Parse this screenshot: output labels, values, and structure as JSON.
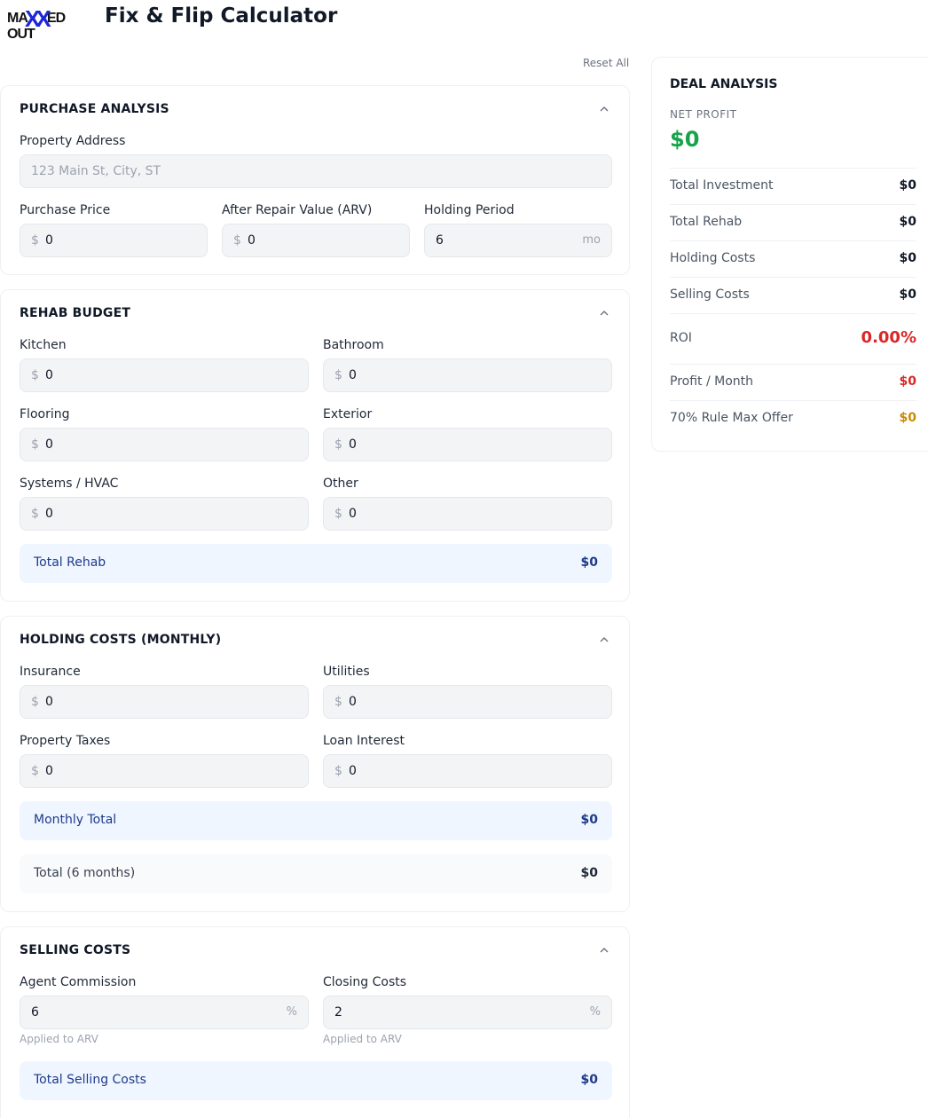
{
  "header": {
    "logo_text": "MAXXED OUT",
    "title": "Fix & Flip Calculator"
  },
  "reset_label": "Reset All",
  "purchase": {
    "heading": "PURCHASE ANALYSIS",
    "address_label": "Property Address",
    "address_placeholder": "123 Main St, City, ST",
    "price_label": "Purchase Price",
    "price_value": "0",
    "arv_label": "After Repair Value (ARV)",
    "arv_value": "0",
    "holding_label": "Holding Period",
    "holding_value": "6",
    "holding_unit": "mo"
  },
  "rehab": {
    "heading": "REHAB BUDGET",
    "fields": [
      {
        "label": "Kitchen",
        "value": "0"
      },
      {
        "label": "Bathroom",
        "value": "0"
      },
      {
        "label": "Flooring",
        "value": "0"
      },
      {
        "label": "Exterior",
        "value": "0"
      },
      {
        "label": "Systems / HVAC",
        "value": "0"
      },
      {
        "label": "Other",
        "value": "0"
      }
    ],
    "total_label": "Total Rehab",
    "total_value": "$0"
  },
  "holding": {
    "heading": "HOLDING COSTS (MONTHLY)",
    "fields": [
      {
        "label": "Insurance",
        "value": "0"
      },
      {
        "label": "Utilities",
        "value": "0"
      },
      {
        "label": "Property Taxes",
        "value": "0"
      },
      {
        "label": "Loan Interest",
        "value": "0"
      }
    ],
    "monthly_label": "Monthly Total",
    "monthly_value": "$0",
    "period_label": "Total (6 months)",
    "period_value": "$0"
  },
  "selling": {
    "heading": "SELLING COSTS",
    "commission_label": "Agent Commission",
    "commission_value": "6",
    "closing_label": "Closing Costs",
    "closing_value": "2",
    "percent_symbol": "%",
    "hint": "Applied to ARV",
    "total_label": "Total Selling Costs",
    "total_value": "$0"
  },
  "currency_symbol": "$",
  "deal": {
    "heading": "DEAL ANALYSIS",
    "net_profit_label": "NET PROFIT",
    "net_profit_value": "$0",
    "rows": [
      {
        "label": "Total Investment",
        "value": "$0"
      },
      {
        "label": "Total Rehab",
        "value": "$0"
      },
      {
        "label": "Holding Costs",
        "value": "$0"
      },
      {
        "label": "Selling Costs",
        "value": "$0"
      },
      {
        "label": "ROI",
        "value": "0.00%"
      },
      {
        "label": "Profit / Month",
        "value": "$0"
      },
      {
        "label": "70% Rule Max Offer",
        "value": "$0"
      }
    ]
  },
  "colors": {
    "profit_green": "#16a34a",
    "negative_red": "#dc2626",
    "rule_amber": "#ca8a04",
    "summary_blue": "#1e3a8a",
    "logo_blue": "#1d27d8"
  }
}
